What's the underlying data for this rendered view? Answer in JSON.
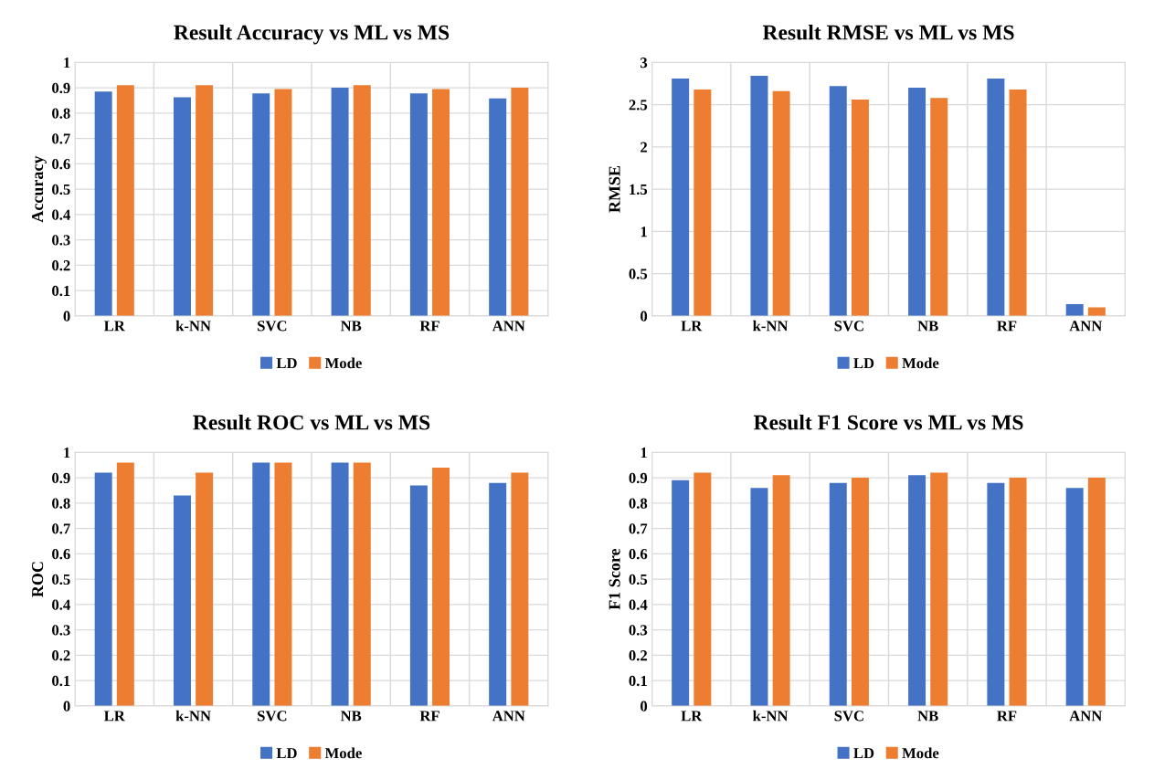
{
  "chart_data": [
    {
      "type": "bar",
      "title": "Result Accuracy vs ML vs MS",
      "ylabel": "Accuracy",
      "categories": [
        "LR",
        "k-NN",
        "SVC",
        "NB",
        "RF",
        "ANN"
      ],
      "series": [
        {
          "name": "LD",
          "color": "#4472c4",
          "values": [
            0.885,
            0.862,
            0.878,
            0.9,
            0.878,
            0.858
          ]
        },
        {
          "name": "Mode",
          "color": "#ed7d31",
          "values": [
            0.91,
            0.91,
            0.895,
            0.91,
            0.895,
            0.9
          ]
        }
      ],
      "ylim": [
        0,
        1
      ],
      "yticks": [
        0,
        0.1,
        0.2,
        0.3,
        0.4,
        0.5,
        0.6,
        0.7,
        0.8,
        0.9,
        1
      ],
      "grid": true,
      "legend": "bottom"
    },
    {
      "type": "bar",
      "title": "Result RMSE vs ML vs MS",
      "ylabel": "RMSE",
      "categories": [
        "LR",
        "k-NN",
        "SVC",
        "NB",
        "RF",
        "ANN"
      ],
      "series": [
        {
          "name": "LD",
          "color": "#4472c4",
          "values": [
            2.81,
            2.84,
            2.72,
            2.7,
            2.81,
            0.14
          ]
        },
        {
          "name": "Mode",
          "color": "#ed7d31",
          "values": [
            2.68,
            2.66,
            2.56,
            2.58,
            2.68,
            0.1
          ]
        }
      ],
      "ylim": [
        0,
        3
      ],
      "yticks": [
        0,
        0.5,
        1,
        1.5,
        2,
        2.5,
        3
      ],
      "grid": true,
      "legend": "bottom"
    },
    {
      "type": "bar",
      "title": "Result ROC vs ML vs MS",
      "ylabel": "ROC",
      "categories": [
        "LR",
        "k-NN",
        "SVC",
        "NB",
        "RF",
        "ANN"
      ],
      "series": [
        {
          "name": "LD",
          "color": "#4472c4",
          "values": [
            0.92,
            0.83,
            0.96,
            0.96,
            0.87,
            0.88
          ]
        },
        {
          "name": "Mode",
          "color": "#ed7d31",
          "values": [
            0.96,
            0.92,
            0.96,
            0.96,
            0.94,
            0.92
          ]
        }
      ],
      "ylim": [
        0,
        1
      ],
      "yticks": [
        0,
        0.1,
        0.2,
        0.3,
        0.4,
        0.5,
        0.6,
        0.7,
        0.8,
        0.9,
        1
      ],
      "grid": true,
      "legend": "bottom"
    },
    {
      "type": "bar",
      "title": "Result F1 Score vs ML vs MS",
      "ylabel": "F1 Score",
      "categories": [
        "LR",
        "k-NN",
        "SVC",
        "NB",
        "RF",
        "ANN"
      ],
      "series": [
        {
          "name": "LD",
          "color": "#4472c4",
          "values": [
            0.89,
            0.86,
            0.88,
            0.91,
            0.88,
            0.86
          ]
        },
        {
          "name": "Mode",
          "color": "#ed7d31",
          "values": [
            0.92,
            0.91,
            0.9,
            0.92,
            0.9,
            0.9
          ]
        }
      ],
      "ylim": [
        0,
        1
      ],
      "yticks": [
        0,
        0.1,
        0.2,
        0.3,
        0.4,
        0.5,
        0.6,
        0.7,
        0.8,
        0.9,
        1
      ],
      "grid": true,
      "legend": "bottom"
    }
  ]
}
